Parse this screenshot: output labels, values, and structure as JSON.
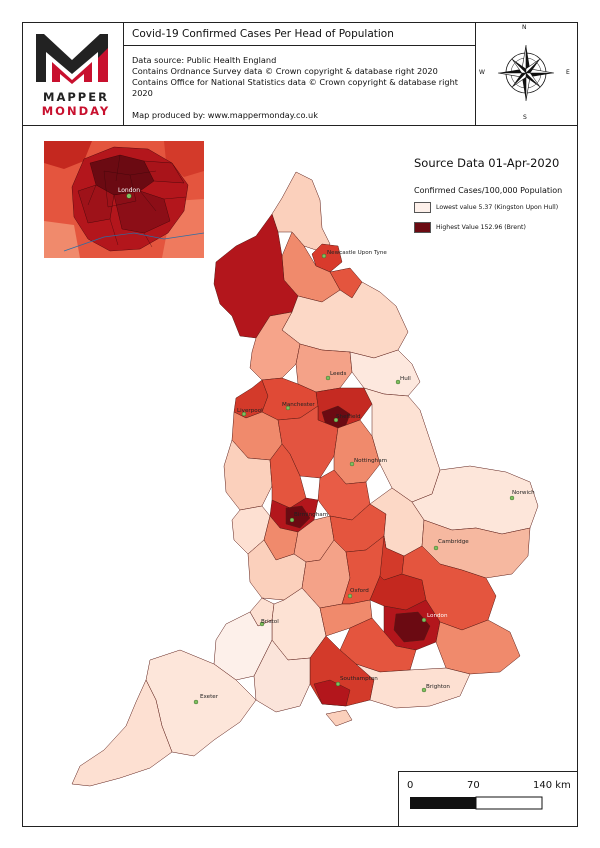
{
  "header": {
    "title": "Covid-19 Confirmed Cases Per Head of Population",
    "info_lines": [
      "Data source: Public Health England",
      "Contains Ordnance Survey data © Crown copyright & database right 2020",
      "Contains Office for National Statistics data © Crown copyright & database right",
      "2020"
    ],
    "credit": "Map produced by: www.mappermonday.co.uk"
  },
  "logo": {
    "line1": "MAPPER",
    "line2": "MONDAY"
  },
  "compass": {
    "n": "N",
    "s": "S",
    "e": "E",
    "w": "W"
  },
  "legend": {
    "title": "Source Data 01-Apr-2020",
    "subtitle": "Confirmed Cases/100,000 Population",
    "items": [
      {
        "label": "Lowest value 5.37 (Kingston Upon Hull)",
        "color": "#fdf0ea"
      },
      {
        "label": "Highest Value 152.96 (Brent)",
        "color": "#6b0a12"
      }
    ]
  },
  "inset": {
    "label": "London"
  },
  "cities": [
    "Newcastle Upon Tyne",
    "Leeds",
    "Hull",
    "Liverpool",
    "Manchester",
    "Sheffield",
    "Nottingham",
    "Norwich",
    "Birmingham",
    "Cambridge",
    "Oxford",
    "Bristol",
    "London",
    "Southampton",
    "Exeter",
    "Brighton"
  ],
  "scale": {
    "labels": [
      "0",
      "70",
      "140 km"
    ]
  },
  "colors": {
    "dark": "#6b0a12",
    "high": "#b3161c",
    "mid": "#e4553e",
    "lowmid": "#f6a48a",
    "low": "#fde0d2",
    "lowest": "#fdf0ea"
  }
}
